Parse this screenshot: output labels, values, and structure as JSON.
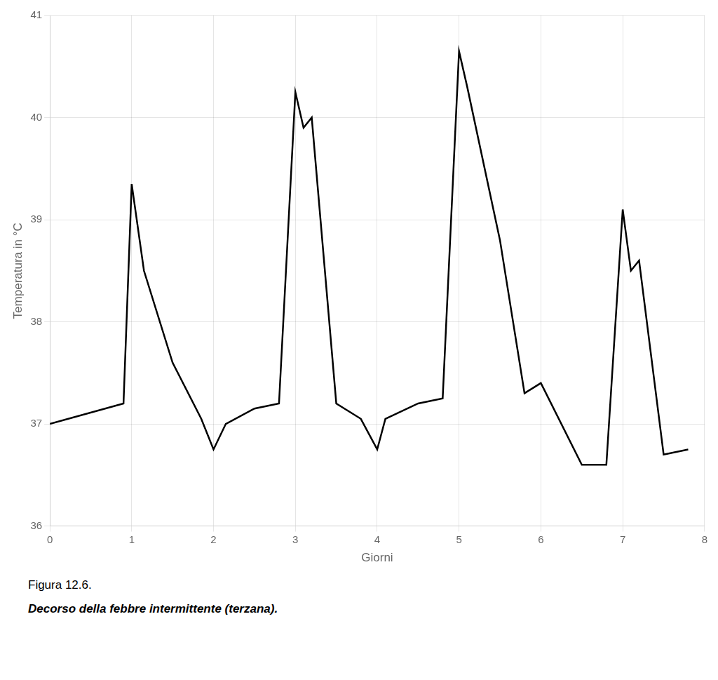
{
  "chart_data": {
    "type": "line",
    "x": [
      0.0,
      0.9,
      1.0,
      1.15,
      1.5,
      1.85,
      2.0,
      2.15,
      2.5,
      2.8,
      3.0,
      3.1,
      3.2,
      3.5,
      3.8,
      4.0,
      4.1,
      4.5,
      4.8,
      5.0,
      5.1,
      5.5,
      5.8,
      6.0,
      6.5,
      6.8,
      7.0,
      7.1,
      7.2,
      7.5,
      7.8
    ],
    "values": [
      37.0,
      37.2,
      39.35,
      38.5,
      37.6,
      37.05,
      36.75,
      37.0,
      37.15,
      37.2,
      40.25,
      39.9,
      40.0,
      37.2,
      37.05,
      36.75,
      37.05,
      37.2,
      37.25,
      40.65,
      40.3,
      38.8,
      37.3,
      37.4,
      36.6,
      36.6,
      39.1,
      38.5,
      38.6,
      36.7,
      36.75
    ],
    "color": "#000000",
    "xlim": [
      0,
      8
    ],
    "ylim": [
      36,
      41
    ],
    "xticks": [
      0,
      1,
      2,
      3,
      4,
      5,
      6,
      7,
      8
    ],
    "yticks": [
      36,
      37,
      38,
      39,
      40,
      41
    ],
    "xlabel": "Giorni",
    "ylabel": "Temperatura in °C",
    "annotations": [
      "Figura 12.6.",
      "Decorso della febbre intermittente (terzana)."
    ],
    "grid": true
  }
}
